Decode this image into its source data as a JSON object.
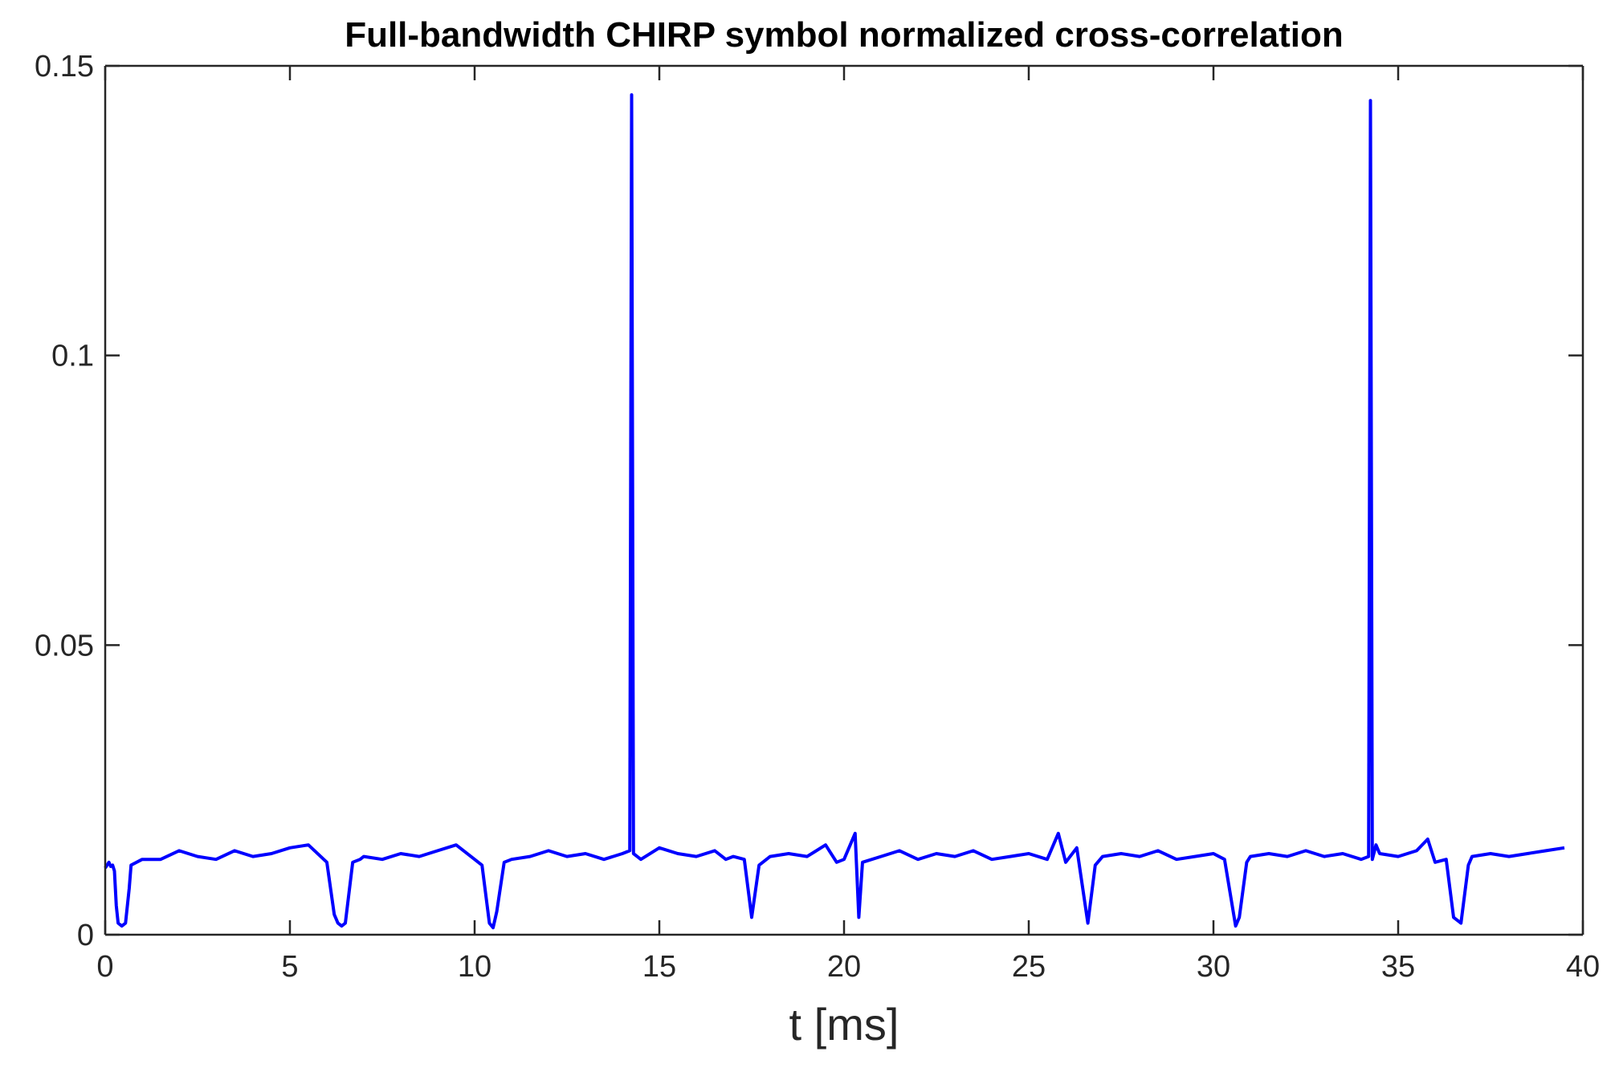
{
  "chart_data": {
    "type": "line",
    "title": "Full-bandwidth CHIRP symbol normalized cross-correlation",
    "xlabel": "t [ms]",
    "ylabel": "",
    "xlim": [
      0,
      40
    ],
    "ylim": [
      0,
      0.15
    ],
    "xticks": [
      0,
      5,
      10,
      15,
      20,
      25,
      30,
      35,
      40
    ],
    "xtick_labels": [
      "0",
      "5",
      "10",
      "15",
      "20",
      "25",
      "30",
      "35",
      "40"
    ],
    "yticks": [
      0,
      0.05,
      0.1,
      0.15
    ],
    "ytick_labels": [
      "0",
      "0.05",
      "0.1",
      "0.15"
    ],
    "grid": false,
    "legend": "none",
    "series": [
      {
        "color": "#0000ff",
        "x": [
          0,
          0.05,
          0.1,
          0.15,
          0.2,
          0.25,
          0.3,
          0.35,
          0.45,
          0.55,
          0.65,
          0.7,
          1.0,
          1.5,
          2.0,
          2.5,
          3.0,
          3.5,
          4.0,
          4.5,
          5.0,
          5.5,
          6.0,
          6.2,
          6.3,
          6.4,
          6.5,
          6.7,
          6.9,
          7.0,
          7.5,
          8.0,
          8.5,
          9.0,
          9.5,
          10.0,
          10.2,
          10.4,
          10.5,
          10.6,
          10.8,
          11.0,
          11.5,
          12.0,
          12.5,
          13.0,
          13.5,
          14.0,
          14.2,
          14.25,
          14.3,
          14.4,
          14.5,
          15.0,
          15.5,
          16.0,
          16.5,
          16.8,
          17.0,
          17.3,
          17.5,
          17.7,
          18.0,
          18.5,
          19.0,
          19.5,
          19.8,
          20.0,
          20.3,
          20.4,
          20.5,
          21.0,
          21.5,
          22.0,
          22.5,
          23.0,
          23.5,
          24.0,
          24.5,
          25.0,
          25.5,
          25.8,
          26.0,
          26.3,
          26.6,
          26.8,
          27.0,
          27.5,
          28.0,
          28.5,
          29.0,
          29.5,
          30.0,
          30.3,
          30.6,
          30.7,
          30.9,
          31.0,
          31.5,
          32.0,
          32.5,
          33.0,
          33.5,
          34.0,
          34.2,
          34.25,
          34.3,
          34.4,
          34.5,
          35.0,
          35.5,
          35.8,
          36.0,
          36.3,
          36.5,
          36.7,
          36.9,
          37.0,
          37.5,
          38.0,
          38.5,
          39.0,
          39.5
        ],
        "y": [
          0.0115,
          0.012,
          0.0125,
          0.0118,
          0.012,
          0.011,
          0.005,
          0.002,
          0.0015,
          0.002,
          0.008,
          0.012,
          0.013,
          0.013,
          0.0145,
          0.0135,
          0.013,
          0.0145,
          0.0135,
          0.014,
          0.015,
          0.0155,
          0.0125,
          0.0035,
          0.002,
          0.0015,
          0.002,
          0.0125,
          0.013,
          0.0135,
          0.013,
          0.014,
          0.0135,
          0.0145,
          0.0155,
          0.013,
          0.012,
          0.002,
          0.0012,
          0.004,
          0.0125,
          0.013,
          0.0135,
          0.0145,
          0.0135,
          0.014,
          0.013,
          0.014,
          0.0145,
          0.145,
          0.014,
          0.0135,
          0.013,
          0.015,
          0.014,
          0.0135,
          0.0145,
          0.013,
          0.0135,
          0.013,
          0.003,
          0.012,
          0.0135,
          0.014,
          0.0135,
          0.0155,
          0.0125,
          0.013,
          0.0175,
          0.003,
          0.0125,
          0.0135,
          0.0145,
          0.013,
          0.014,
          0.0135,
          0.0145,
          0.013,
          0.0135,
          0.014,
          0.013,
          0.0175,
          0.0125,
          0.015,
          0.002,
          0.012,
          0.0135,
          0.014,
          0.0135,
          0.0145,
          0.013,
          0.0135,
          0.014,
          0.013,
          0.0015,
          0.003,
          0.0125,
          0.0135,
          0.014,
          0.0135,
          0.0145,
          0.0135,
          0.014,
          0.013,
          0.0135,
          0.144,
          0.013,
          0.0155,
          0.014,
          0.0135,
          0.0145,
          0.0165,
          0.0125,
          0.013,
          0.003,
          0.002,
          0.012,
          0.0135,
          0.014,
          0.0135,
          0.014,
          0.0145,
          0.015
        ]
      }
    ]
  }
}
